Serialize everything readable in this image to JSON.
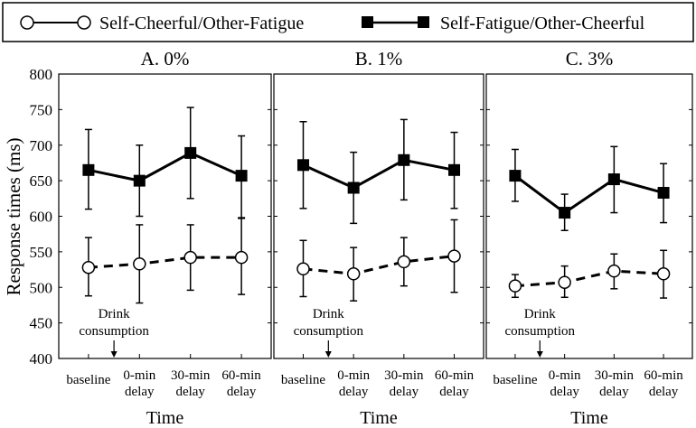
{
  "chart_data": {
    "type": "line",
    "ylabel": "Response times (ms)",
    "xlabel": "Time",
    "ylim": [
      400,
      800
    ],
    "yticks": [
      "400",
      "450",
      "500",
      "550",
      "600",
      "650",
      "700",
      "750",
      "800"
    ],
    "categories": [
      [
        "baseline"
      ],
      [
        "0-min",
        "delay"
      ],
      [
        "30-min",
        "delay"
      ],
      [
        "60-min",
        "delay"
      ]
    ],
    "annotation": [
      "Drink",
      "consumption"
    ],
    "legend": {
      "placement": "top",
      "entries": [
        "Self-Cheerful/Other-Fatigue",
        "Self-Fatigue/Other-Cheerful"
      ]
    },
    "panels": [
      {
        "title": "A. 0%",
        "series": [
          {
            "name": "Self-Cheerful/Other-Fatigue",
            "values": [
              528,
              533,
              542,
              542
            ],
            "upper": [
              570,
              588,
              588,
              597
            ],
            "lower": [
              488,
              478,
              496,
              490
            ]
          },
          {
            "name": "Self-Fatigue/Other-Cheerful",
            "values": [
              665,
              650,
              689,
              657
            ],
            "upper": [
              722,
              700,
              753,
              713
            ],
            "lower": [
              610,
              600,
              625,
              598
            ]
          }
        ]
      },
      {
        "title": "B. 1%",
        "series": [
          {
            "name": "Self-Cheerful/Other-Fatigue",
            "values": [
              526,
              519,
              536,
              544
            ],
            "upper": [
              566,
              556,
              570,
              595
            ],
            "lower": [
              487,
              481,
              502,
              493
            ]
          },
          {
            "name": "Self-Fatigue/Other-Cheerful",
            "values": [
              672,
              640,
              679,
              665
            ],
            "upper": [
              733,
              690,
              736,
              718
            ],
            "lower": [
              611,
              590,
              623,
              611
            ]
          }
        ]
      },
      {
        "title": "C. 3%",
        "series": [
          {
            "name": "Self-Cheerful/Other-Fatigue",
            "values": [
              502,
              507,
              523,
              519
            ],
            "upper": [
              518,
              530,
              547,
              552
            ],
            "lower": [
              486,
              486,
              498,
              485
            ]
          },
          {
            "name": "Self-Fatigue/Other-Cheerful",
            "values": [
              657,
              605,
              652,
              633
            ],
            "upper": [
              694,
              631,
              698,
              674
            ],
            "lower": [
              621,
              580,
              605,
              591
            ]
          }
        ]
      }
    ]
  }
}
